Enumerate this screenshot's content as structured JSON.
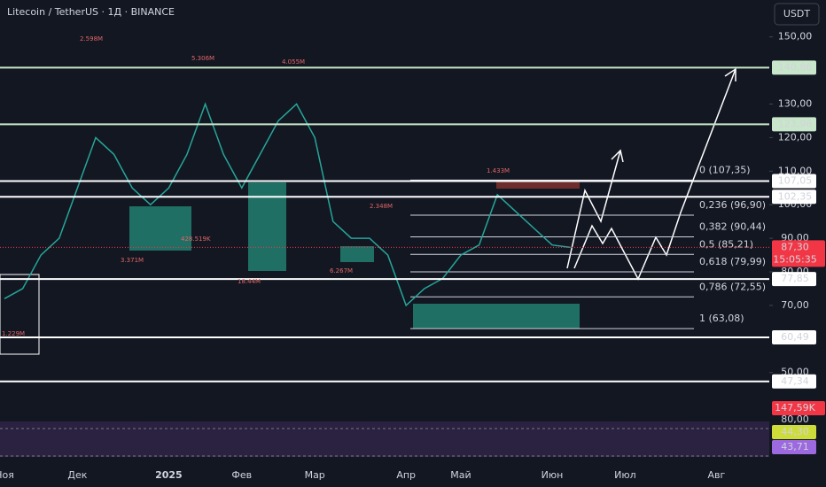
{
  "header": {
    "title": "Litecoin / TetherUS · 1Д · BINANCE",
    "currency": "USDT"
  },
  "chart_data": {
    "type": "line",
    "color": "#26a69a",
    "categories": [
      "Ноя",
      null,
      null,
      null,
      "Дек",
      null,
      null,
      null,
      null,
      "2025",
      null,
      null,
      null,
      "Фев",
      null,
      null,
      null,
      "Мар",
      null,
      null,
      null,
      null,
      "Апр",
      null,
      null,
      "Май",
      null,
      null,
      null,
      null,
      "Июн",
      null,
      null,
      null,
      "Июл",
      null,
      null,
      null,
      null,
      "Авг",
      null,
      null,
      null
    ],
    "values": [
      72,
      75,
      85,
      90,
      105,
      120,
      115,
      105,
      100,
      105,
      115,
      130,
      115,
      105,
      115,
      125,
      130,
      120,
      95,
      90,
      90,
      85,
      70,
      75,
      78,
      85,
      88,
      103,
      98,
      93,
      88,
      87.3,
      null,
      null,
      null,
      null,
      null,
      null,
      null,
      null,
      null,
      null,
      null
    ],
    "ylim": [
      37,
      161
    ],
    "yticks": [
      {
        "value": 150,
        "label": "150,00"
      },
      {
        "value": 130,
        "label": "130,00"
      },
      {
        "value": 120,
        "label": "120,00"
      },
      {
        "value": 110,
        "label": "110,00"
      },
      {
        "value": 100,
        "label": "100,00"
      },
      {
        "value": 90,
        "label": "90,00"
      },
      {
        "value": 80,
        "label": "80,00"
      },
      {
        "value": 70,
        "label": "70,00"
      },
      {
        "value": 50,
        "label": "50,00"
      }
    ],
    "levels": [
      {
        "value": 140.86,
        "label": "140,86",
        "color": "#c8e6c9"
      },
      {
        "value": 123.96,
        "label": "123,96",
        "color": "#c8e6c9"
      },
      {
        "value": 107.05,
        "label": "107,05",
        "color": "#ffffff"
      },
      {
        "value": 102.35,
        "label": "102,35",
        "color": "#ffffff"
      },
      {
        "value": 77.85,
        "label": "77,85",
        "color": "#ffffff"
      },
      {
        "value": 60.49,
        "label": "60,49",
        "color": "#ffffff"
      },
      {
        "value": 47.34,
        "label": "47,34",
        "color": "#ffffff"
      }
    ],
    "fib": [
      {
        "value": 107.35,
        "label": "0 (107,35)"
      },
      {
        "value": 96.9,
        "label": "0,236 (96,90)"
      },
      {
        "value": 90.44,
        "label": "0,382 (90,44)"
      },
      {
        "value": 85.21,
        "label": "0,5 (85,21)"
      },
      {
        "value": 79.99,
        "label": "0,618 (79,99)"
      },
      {
        "value": 72.55,
        "label": "0,786 (72,55)"
      },
      {
        "value": 63.08,
        "label": "1 (63,08)"
      }
    ],
    "last_price": {
      "value": 87.3,
      "label": "87,30",
      "countdown": "15:05:35"
    },
    "volume_label": "147,59K",
    "rsi_tick": "80,00",
    "rsi_labels": [
      "44,30",
      "43,71"
    ],
    "annotations": [
      "2.598M",
      "5.306M",
      "4.055M",
      "1.433M",
      "2.348M",
      "428.519K",
      "3.371M",
      "18.44M",
      "6.267M",
      "1.229M"
    ]
  }
}
